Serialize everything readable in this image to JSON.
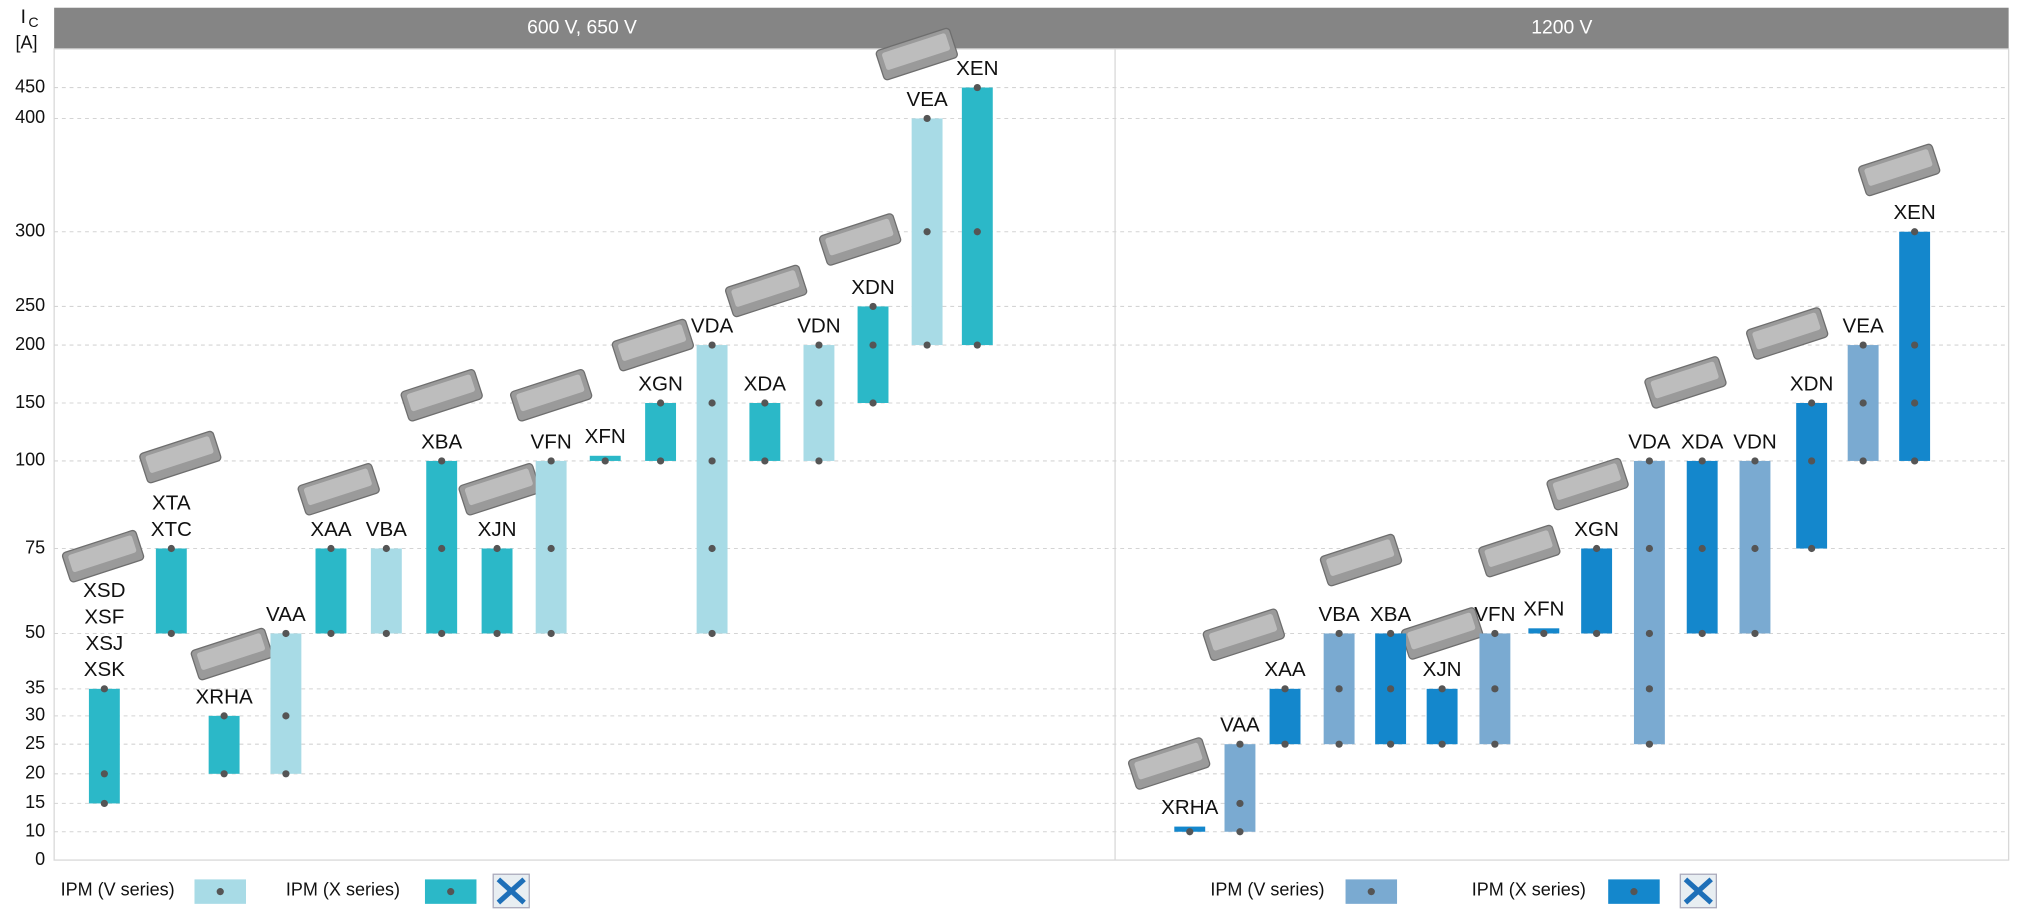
{
  "chart_data": {
    "type": "range_bar",
    "y_label": "I",
    "y_label_sub": "C",
    "y_unit": "[A]",
    "yticks": [
      0,
      10,
      15,
      20,
      25,
      30,
      35,
      50,
      75,
      100,
      150,
      200,
      250,
      300,
      400,
      450
    ],
    "grid": true,
    "panels": [
      {
        "title": "600 V, 650 V",
        "series": [
          {
            "name": "IPM (V series)",
            "color": "#a8dbe6"
          },
          {
            "name": "IPM (X series)",
            "color": "#2bb8c8"
          }
        ],
        "bars": [
          {
            "labels": [
              "XSD",
              "XSF",
              "XSJ",
              "XSK"
            ],
            "series": 1,
            "low": 15,
            "high": 35,
            "points": [
              15,
              20,
              35
            ]
          },
          {
            "labels": [
              "XTA",
              "XTC"
            ],
            "series": 1,
            "low": 50,
            "high": 75,
            "points": [
              50,
              75
            ]
          },
          {
            "labels": [
              "XRHA"
            ],
            "series": 1,
            "low": 20,
            "high": 30,
            "points": [
              20,
              30
            ]
          },
          {
            "labels": [
              "VAA"
            ],
            "series": 0,
            "low": 20,
            "high": 50,
            "points": [
              20,
              30,
              50
            ]
          },
          {
            "labels": [
              "XAA"
            ],
            "series": 1,
            "low": 50,
            "high": 75,
            "points": [
              50,
              75
            ]
          },
          {
            "labels": [
              "VBA"
            ],
            "series": 0,
            "low": 50,
            "high": 75,
            "points": [
              50,
              75
            ]
          },
          {
            "labels": [
              "XBA"
            ],
            "series": 1,
            "low": 50,
            "high": 100,
            "points": [
              50,
              75,
              100
            ]
          },
          {
            "labels": [
              "XJN"
            ],
            "series": 1,
            "low": 50,
            "high": 75,
            "points": [
              50,
              75
            ]
          },
          {
            "labels": [
              "VFN"
            ],
            "series": 0,
            "low": 50,
            "high": 100,
            "points": [
              50,
              75,
              100
            ]
          },
          {
            "labels": [
              "XFN"
            ],
            "series": 1,
            "low": 100,
            "high": 100,
            "points": [
              100
            ]
          },
          {
            "labels": [
              "XGN"
            ],
            "series": 1,
            "low": 100,
            "high": 150,
            "points": [
              100,
              150
            ]
          },
          {
            "labels": [
              "VDA"
            ],
            "series": 0,
            "low": 50,
            "high": 200,
            "points": [
              50,
              75,
              100,
              150,
              200
            ]
          },
          {
            "labels": [
              "XDA"
            ],
            "series": 1,
            "low": 100,
            "high": 150,
            "points": [
              100,
              150
            ]
          },
          {
            "labels": [
              "VDN"
            ],
            "series": 0,
            "low": 100,
            "high": 200,
            "points": [
              100,
              150,
              200
            ]
          },
          {
            "labels": [
              "XDN"
            ],
            "series": 1,
            "low": 150,
            "high": 250,
            "points": [
              150,
              200,
              250
            ]
          },
          {
            "labels": [
              "VEA"
            ],
            "series": 0,
            "low": 200,
            "high": 400,
            "points": [
              200,
              300,
              400
            ]
          },
          {
            "labels": [
              "XEN"
            ],
            "series": 1,
            "low": 200,
            "high": 450,
            "points": [
              200,
              300,
              450
            ]
          }
        ]
      },
      {
        "title": "1200 V",
        "series": [
          {
            "name": "IPM (V series)",
            "color": "#7aaad1"
          },
          {
            "name": "IPM (X series)",
            "color": "#1487cc"
          }
        ],
        "bars": [
          {
            "labels": [
              "XRHA"
            ],
            "series": 1,
            "low": 10,
            "high": 10,
            "points": [
              10
            ]
          },
          {
            "labels": [
              "VAA"
            ],
            "series": 0,
            "low": 10,
            "high": 25,
            "points": [
              10,
              15,
              25
            ]
          },
          {
            "labels": [
              "XAA"
            ],
            "series": 1,
            "low": 25,
            "high": 35,
            "points": [
              25,
              35
            ]
          },
          {
            "labels": [
              "VBA"
            ],
            "series": 0,
            "low": 25,
            "high": 50,
            "points": [
              25,
              35,
              50
            ]
          },
          {
            "labels": [
              "XBA"
            ],
            "series": 1,
            "low": 25,
            "high": 50,
            "points": [
              25,
              35,
              50
            ]
          },
          {
            "labels": [
              "XJN"
            ],
            "series": 1,
            "low": 25,
            "high": 35,
            "points": [
              25,
              35
            ]
          },
          {
            "labels": [
              "VFN"
            ],
            "series": 0,
            "low": 25,
            "high": 50,
            "points": [
              25,
              35,
              50
            ]
          },
          {
            "labels": [
              "XFN"
            ],
            "series": 1,
            "low": 50,
            "high": 50,
            "points": [
              50
            ]
          },
          {
            "labels": [
              "XGN"
            ],
            "series": 1,
            "low": 50,
            "high": 75,
            "points": [
              50,
              75
            ]
          },
          {
            "labels": [
              "VDA"
            ],
            "series": 0,
            "low": 25,
            "high": 100,
            "points": [
              25,
              35,
              50,
              75,
              100
            ]
          },
          {
            "labels": [
              "XDA"
            ],
            "series": 1,
            "low": 50,
            "high": 100,
            "points": [
              50,
              75,
              100
            ]
          },
          {
            "labels": [
              "VDN"
            ],
            "series": 0,
            "low": 50,
            "high": 100,
            "points": [
              50,
              75,
              100
            ]
          },
          {
            "labels": [
              "XDN"
            ],
            "series": 1,
            "low": 75,
            "high": 150,
            "points": [
              75,
              100,
              150
            ]
          },
          {
            "labels": [
              "VEA"
            ],
            "series": 0,
            "low": 100,
            "high": 200,
            "points": [
              100,
              150,
              200
            ]
          },
          {
            "labels": [
              "XEN"
            ],
            "series": 1,
            "low": 100,
            "high": 300,
            "points": [
              100,
              150,
              200,
              300
            ]
          }
        ]
      }
    ]
  }
}
